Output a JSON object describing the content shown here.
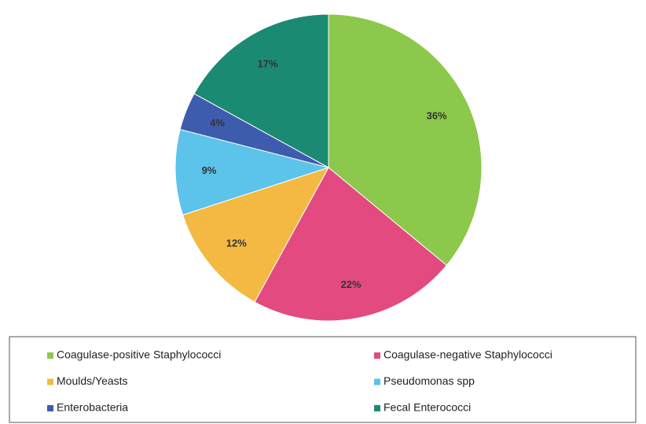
{
  "chart_data": {
    "type": "pie",
    "categories": [
      "Coagulase-positive Staphylococci",
      "Coagulase-negative Staphylococci",
      "Moulds/Yeasts",
      "Pseudomonas spp",
      "Enterobacteria",
      "Fecal Enterococci"
    ],
    "values": [
      36,
      22,
      12,
      9,
      4,
      17
    ],
    "value_labels": [
      "36%",
      "22%",
      "12%",
      "9%",
      "4%",
      "17%"
    ],
    "colors": [
      "#8cc84b",
      "#e34a80",
      "#f3b942",
      "#5cc3ea",
      "#3d5cae",
      "#1b8a72"
    ],
    "legend": "bottom"
  }
}
